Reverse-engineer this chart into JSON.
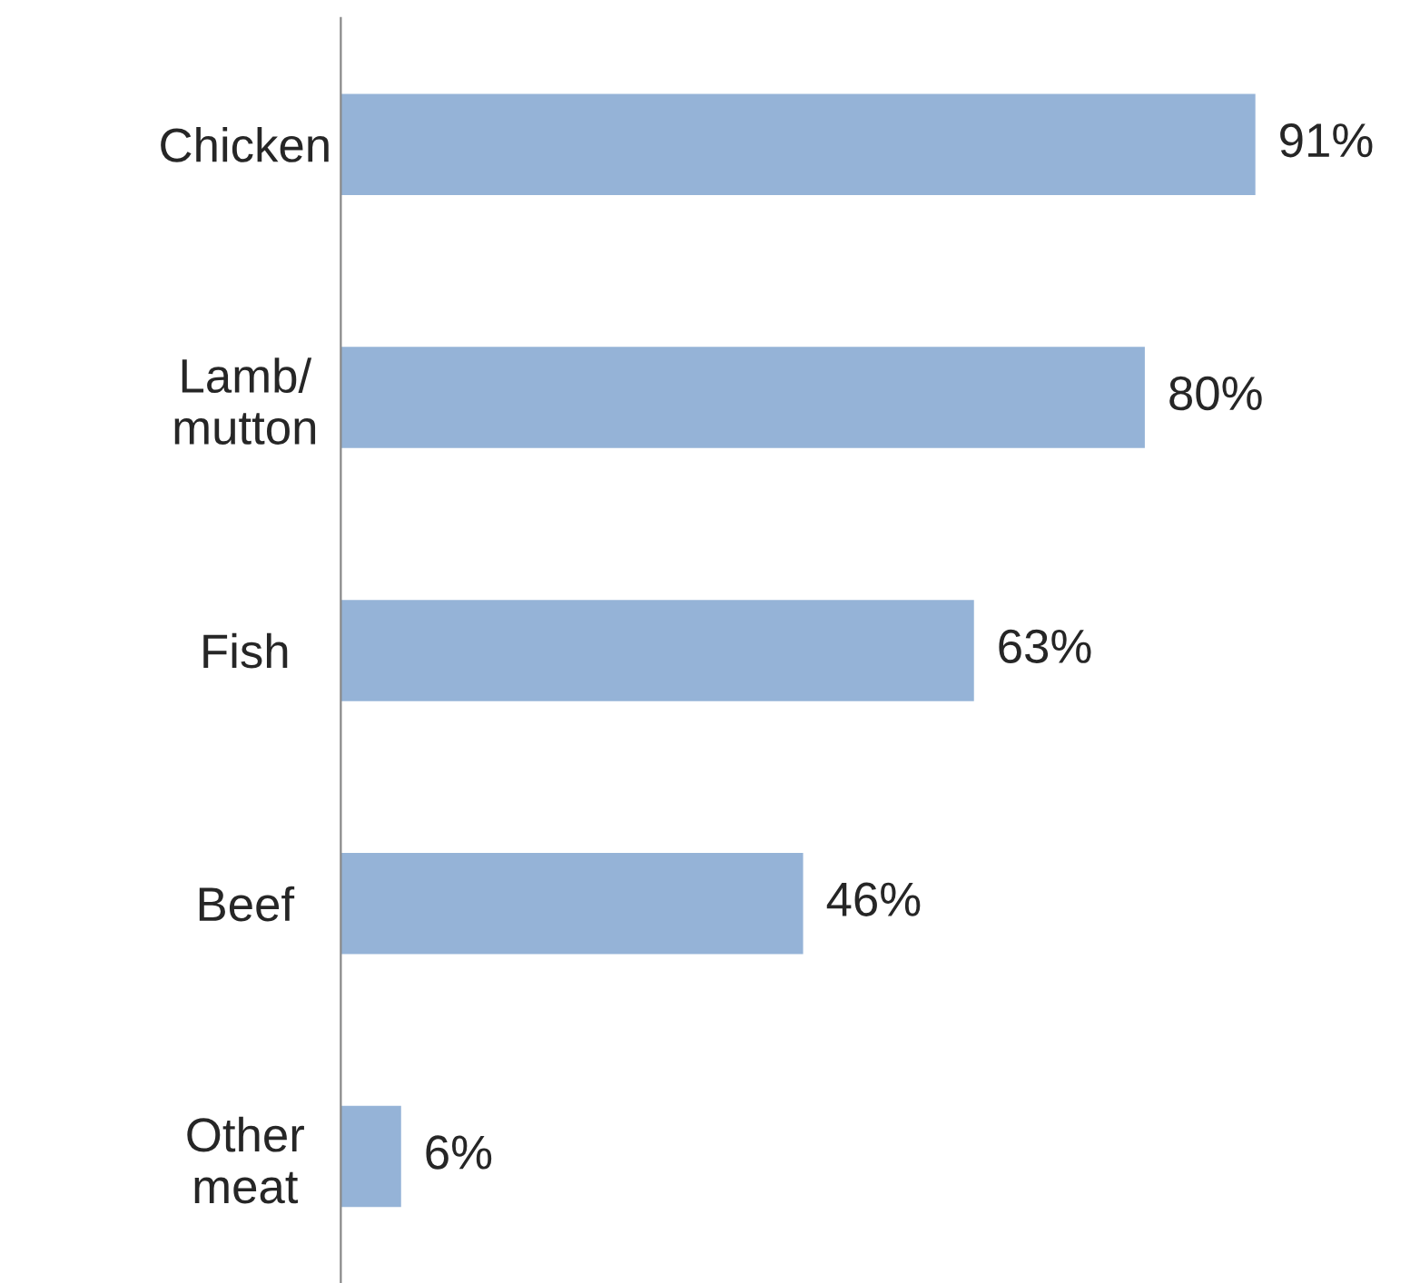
{
  "chart_data": {
    "type": "bar",
    "orientation": "horizontal",
    "categories": [
      "Chicken",
      "Lamb/\nmutton",
      "Fish",
      "Beef",
      "Other\nmeat"
    ],
    "values": [
      91,
      80,
      63,
      46,
      6
    ],
    "value_labels": [
      "91%",
      "80%",
      "63%",
      "46%",
      "6%"
    ],
    "color": "#95b3d7",
    "grid": false,
    "legend": false
  }
}
